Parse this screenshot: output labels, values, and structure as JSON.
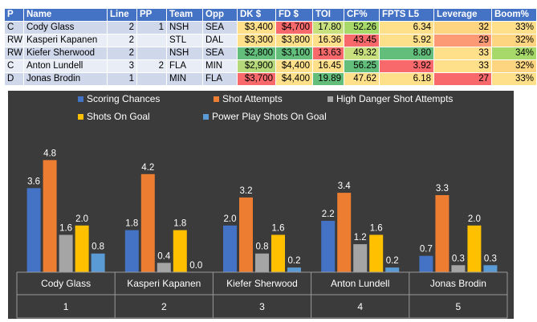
{
  "table": {
    "headers": [
      "P",
      "Name",
      "Line",
      "PP",
      "Team",
      "Opp",
      "DK $",
      "FD $",
      "TOI",
      "CF%",
      "FPTS L5",
      "Leverage",
      "Boom%"
    ],
    "rows": [
      {
        "cells": [
          "C",
          "Cody Glass",
          "2",
          "1",
          "NSH",
          "SEA",
          "$3,400",
          "$4,700",
          "17.80",
          "52.26",
          "6.34",
          "32",
          "33%"
        ],
        "colors": [
          "",
          "",
          "",
          "",
          "",
          "",
          "#fee08b",
          "#f8696b",
          "#c9e07f",
          "#a6d96a",
          "#fee08b",
          "#fdd47f",
          "#fee08b"
        ]
      },
      {
        "cells": [
          "RW",
          "Kasperi Kapanen",
          "2",
          "",
          "STL",
          "DAL",
          "$3,300",
          "$3,800",
          "16.36",
          "43.45",
          "5.92",
          "29",
          "32%"
        ],
        "colors": [
          "",
          "",
          "",
          "",
          "",
          "",
          "#fee08b",
          "#fee08b",
          "#fee08b",
          "#f8696b",
          "#fee08b",
          "#fb9a75",
          "#fdd47f"
        ]
      },
      {
        "cells": [
          "RW",
          "Kiefer Sherwood",
          "2",
          "",
          "NSH",
          "SEA",
          "$2,800",
          "$3,100",
          "13.63",
          "49.32",
          "8.80",
          "33",
          "34%"
        ],
        "colors": [
          "",
          "",
          "",
          "",
          "",
          "",
          "#63be7b",
          "#63be7b",
          "#f8696b",
          "#c9e07f",
          "#63be7b",
          "#fee08b",
          "#a6d96a"
        ]
      },
      {
        "cells": [
          "C",
          "Anton Lundell",
          "3",
          "2",
          "FLA",
          "MIN",
          "$2,900",
          "$4,400",
          "16.45",
          "56.25",
          "3.92",
          "33",
          "32%"
        ],
        "colors": [
          "",
          "",
          "",
          "",
          "",
          "",
          "#b5d97b",
          "#fee08b",
          "#fee08b",
          "#63be7b",
          "#f8696b",
          "#fee08b",
          "#fdd47f"
        ]
      },
      {
        "cells": [
          "D",
          "Jonas Brodin",
          "1",
          "",
          "MIN",
          "FLA",
          "$3,700",
          "$4,400",
          "19.89",
          "47.62",
          "6.18",
          "27",
          "33%"
        ],
        "colors": [
          "",
          "",
          "",
          "",
          "",
          "",
          "#f8696b",
          "#fee08b",
          "#63be7b",
          "#fee08b",
          "#fee08b",
          "#f8696b",
          "#fee08b"
        ]
      }
    ]
  },
  "chart_data": {
    "type": "bar",
    "categories": [
      "Cody Glass",
      "Kasperi Kapanen",
      "Kiefer Sherwood",
      "Anton Lundell",
      "Jonas Brodin"
    ],
    "category_numbers": [
      "1",
      "2",
      "3",
      "4",
      "5"
    ],
    "series": [
      {
        "name": "Scoring Chances",
        "values": [
          3.6,
          1.8,
          2.0,
          2.2,
          0.7
        ],
        "color": "#4472c4"
      },
      {
        "name": "Shot Attempts",
        "values": [
          4.8,
          4.2,
          3.2,
          3.4,
          3.3
        ],
        "color": "#ed7d31"
      },
      {
        "name": "High Danger Shot Attempts",
        "values": [
          1.6,
          0.4,
          0.8,
          1.2,
          0.3
        ],
        "color": "#a5a5a5"
      },
      {
        "name": "Shots On Goal",
        "values": [
          2.0,
          1.8,
          1.6,
          1.6,
          2.0
        ],
        "color": "#ffc000"
      },
      {
        "name": "Power Play Shots On Goal",
        "values": [
          0.8,
          0.0,
          0.2,
          0.2,
          0.3
        ],
        "color": "#5b9bd5"
      }
    ],
    "ylim": [
      0,
      5.5
    ],
    "legend": "top",
    "background": "#3b3b3b",
    "text_color": "#ffffff"
  }
}
